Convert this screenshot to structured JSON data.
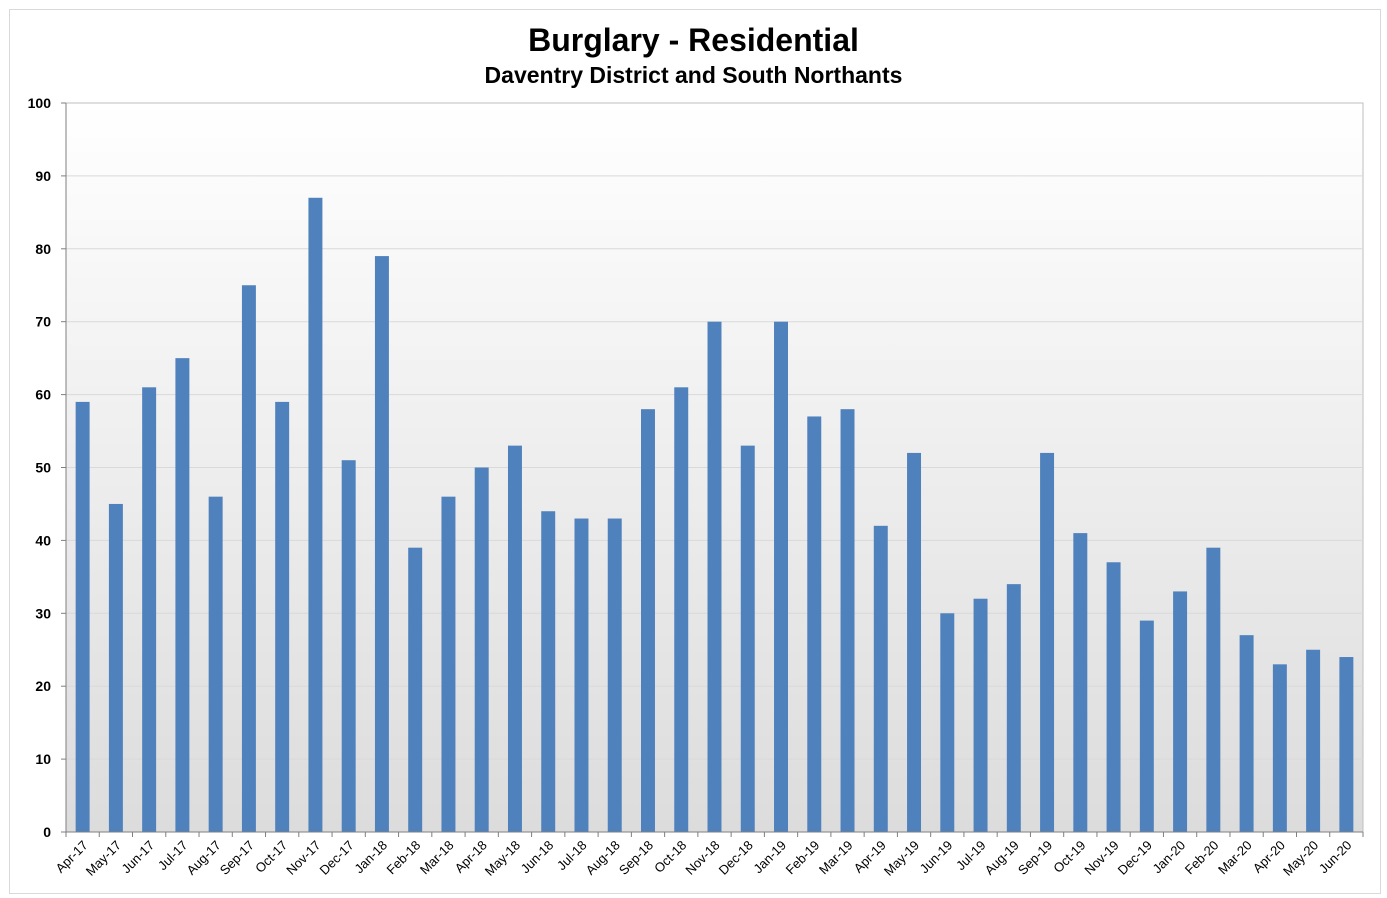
{
  "chart_data": {
    "type": "bar",
    "title": "Burglary - Residential",
    "subtitle": "Daventry District and South Northants",
    "xlabel": "",
    "ylabel": "",
    "ylim": [
      0,
      100
    ],
    "yticks": [
      0,
      10,
      20,
      30,
      40,
      50,
      60,
      70,
      80,
      90,
      100
    ],
    "grid": true,
    "bar_color": "#4f81bd",
    "categories": [
      "Apr-17",
      "May-17",
      "Jun-17",
      "Jul-17",
      "Aug-17",
      "Sep-17",
      "Oct-17",
      "Nov-17",
      "Dec-17",
      "Jan-18",
      "Feb-18",
      "Mar-18",
      "Apr-18",
      "May-18",
      "Jun-18",
      "Jul-18",
      "Aug-18",
      "Sep-18",
      "Oct-18",
      "Nov-18",
      "Dec-18",
      "Jan-19",
      "Feb-19",
      "Mar-19",
      "Apr-19",
      "May-19",
      "Jun-19",
      "Jul-19",
      "Aug-19",
      "Sep-19",
      "Oct-19",
      "Nov-19",
      "Dec-19",
      "Jan-20",
      "Feb-20",
      "Mar-20",
      "Apr-20",
      "May-20",
      "Jun-20"
    ],
    "values": [
      59,
      45,
      61,
      65,
      46,
      75,
      59,
      87,
      51,
      79,
      39,
      46,
      50,
      53,
      44,
      43,
      43,
      58,
      61,
      70,
      53,
      70,
      57,
      58,
      42,
      52,
      30,
      32,
      34,
      52,
      41,
      37,
      29,
      33,
      39,
      27,
      23,
      25,
      24
    ]
  }
}
